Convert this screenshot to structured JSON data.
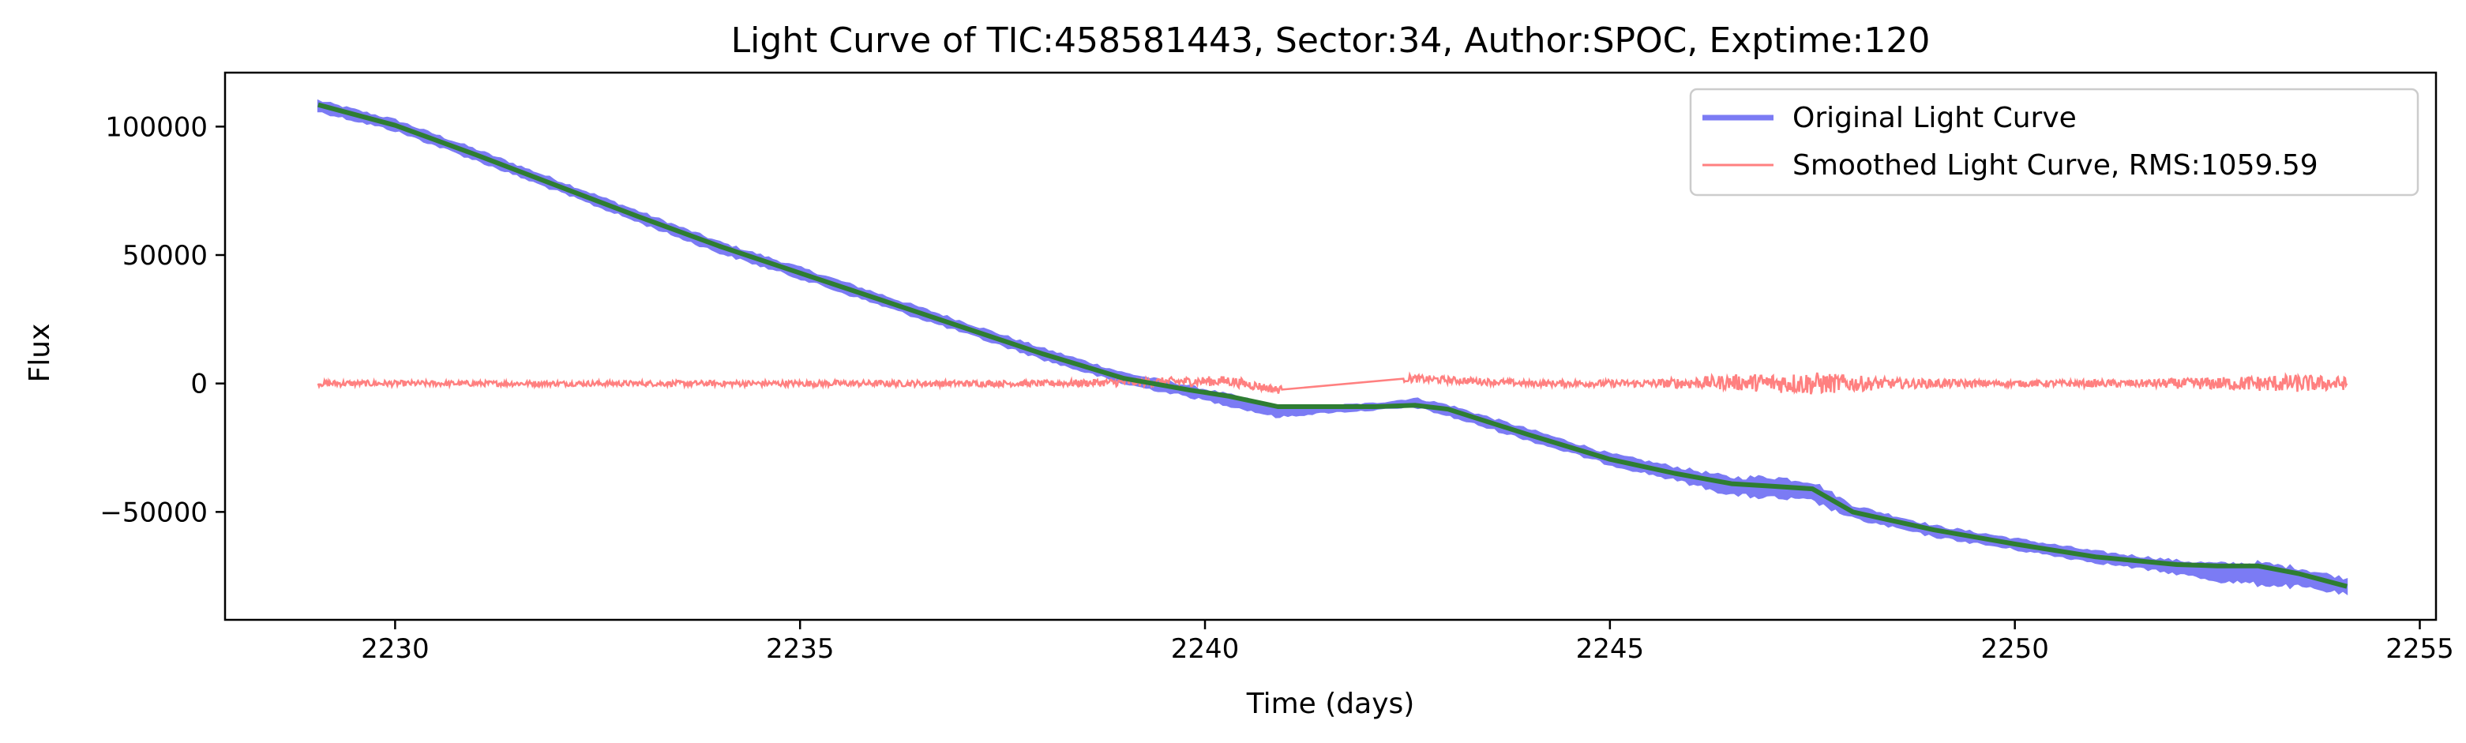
{
  "chart_data": {
    "type": "line",
    "title": "Light Curve of TIC:458581443, Sector:34, Author:SPOC, Exptime:120",
    "xlabel": "Time (days)",
    "ylabel": "Flux",
    "xlim": [
      2227.9,
      2255.2
    ],
    "ylim": [
      -92000,
      121000
    ],
    "xticks": [
      2230,
      2235,
      2240,
      2245,
      2250,
      2255
    ],
    "yticks": [
      -50000,
      0,
      50000,
      100000
    ],
    "ytick_labels": [
      "−50000",
      "0",
      "50000",
      "100000"
    ],
    "grid": false,
    "legend_position": "top-right",
    "series": [
      {
        "name": "Original Light Curve",
        "color": "#7b7bf4",
        "style": "band",
        "x": [
          2229.05,
          2230,
          2231,
          2232,
          2233,
          2234,
          2235,
          2236,
          2237,
          2238,
          2239,
          2239.8,
          2240.3,
          2240.9,
          2241.5,
          2242.1,
          2242.6,
          2243,
          2244,
          2245,
          2245.8,
          2246.5,
          2247,
          2247.5,
          2248,
          2249,
          2250,
          2251,
          2252,
          2252.5,
          2253,
          2253.5,
          2254.1
        ],
        "values": [
          108000,
          100500,
          89000,
          77000,
          65000,
          53000,
          43000,
          32500,
          22000,
          11500,
          2000,
          -3000,
          -6500,
          -11000,
          -10000,
          -9000,
          -7500,
          -10500,
          -20000,
          -29500,
          -35000,
          -40000,
          -40500,
          -42000,
          -50000,
          -57500,
          -62500,
          -67500,
          -71500,
          -73500,
          -74000,
          -75500,
          -79000
        ],
        "spread": [
          2500,
          2500,
          2500,
          2500,
          2500,
          2500,
          2500,
          2500,
          2500,
          2500,
          2500,
          2500,
          2500,
          2500,
          1500,
          1500,
          2000,
          2500,
          2500,
          2500,
          3000,
          4000,
          5000,
          4500,
          3000,
          2500,
          2500,
          2500,
          3000,
          4000,
          5000,
          4500,
          3500
        ]
      },
      {
        "name": "Smoothed Light Curve, RMS:1059.59",
        "color": "#ff8080",
        "style": "noise",
        "x": [
          2229.05,
          2232,
          2235,
          2238,
          2240.3,
          2240.9,
          2242.5,
          2244,
          2245.5,
          2246.5,
          2247.5,
          2248.5,
          2250,
          2251.5,
          2252.5,
          2253.5,
          2254.1
        ],
        "values": [
          0,
          0,
          0,
          0,
          1000,
          -2500,
          2000,
          0,
          0,
          500,
          0,
          0,
          0,
          0,
          0,
          0,
          0
        ],
        "amplitude": [
          1200,
          1000,
          1200,
          1200,
          2000,
          1500,
          1500,
          1200,
          1500,
          3000,
          4500,
          2000,
          1200,
          1500,
          2500,
          3500,
          2500
        ],
        "gaps": [
          [
            2240.95,
            2242.45
          ]
        ]
      },
      {
        "name": "",
        "color": "#2e7d32",
        "style": "line",
        "x": [
          2229.05,
          2230,
          2231,
          2232,
          2233,
          2234,
          2235,
          2236,
          2237,
          2238,
          2239,
          2239.8,
          2240.3,
          2240.9,
          2241.5,
          2242.1,
          2242.6,
          2243,
          2244,
          2245,
          2245.8,
          2246.5,
          2247,
          2247.5,
          2248,
          2249,
          2250,
          2251,
          2252,
          2252.5,
          2253,
          2253.5,
          2254.1
        ],
        "values": [
          108500,
          100500,
          89000,
          77000,
          65000,
          53500,
          43000,
          32500,
          22000,
          11500,
          2000,
          -2500,
          -5000,
          -9000,
          -9000,
          -9000,
          -8500,
          -10000,
          -20000,
          -29500,
          -35000,
          -39000,
          -40000,
          -41000,
          -50000,
          -57000,
          -62500,
          -67500,
          -70500,
          -71000,
          -71000,
          -74000,
          -79000
        ]
      }
    ]
  }
}
